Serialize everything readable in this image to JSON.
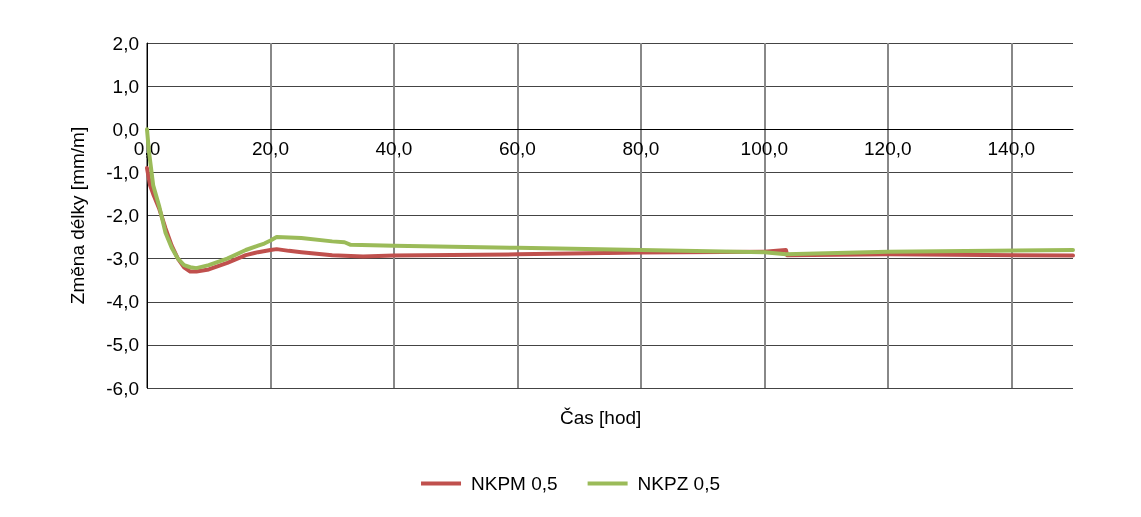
{
  "chart_data": {
    "type": "line",
    "xlabel": "Čas [hod]",
    "ylabel": "Změna délky [mm/m]",
    "xlim": [
      0,
      150
    ],
    "xticks": [
      {
        "value": 0,
        "label": "0,0"
      },
      {
        "value": 20,
        "label": "20,0"
      },
      {
        "value": 40,
        "label": "40,0"
      },
      {
        "value": 60,
        "label": "60,0"
      },
      {
        "value": 80,
        "label": "80,0"
      },
      {
        "value": 100,
        "label": "100,0"
      },
      {
        "value": 120,
        "label": "120,0"
      },
      {
        "value": 140,
        "label": "140,0"
      }
    ],
    "ylim": [
      -6,
      2
    ],
    "yticks": [
      {
        "value": -6,
        "label": "-6,0"
      },
      {
        "value": -5,
        "label": "-5,0"
      },
      {
        "value": -4,
        "label": "-4,0"
      },
      {
        "value": -3,
        "label": "-3,0"
      },
      {
        "value": -2,
        "label": "-2,0"
      },
      {
        "value": -1,
        "label": "-1,0"
      },
      {
        "value": 0,
        "label": "0,0"
      },
      {
        "value": 1,
        "label": "1,0"
      },
      {
        "value": 2,
        "label": "2,0"
      }
    ],
    "grid": true,
    "legend": "bottom",
    "marker": "none",
    "line_style": "solid",
    "series": [
      {
        "name": "NKPM 0,5",
        "color": "#c0504d",
        "x": [
          0,
          0.5,
          1,
          2,
          3,
          4,
          5,
          6,
          7,
          8,
          10,
          13,
          16,
          18,
          20,
          21,
          23,
          25,
          30,
          35,
          40,
          60,
          80,
          100,
          103.5,
          103.7,
          120,
          150
        ],
        "values": [
          -0.9,
          -1.3,
          -1.5,
          -1.85,
          -2.3,
          -2.7,
          -3.0,
          -3.2,
          -3.3,
          -3.3,
          -3.25,
          -3.1,
          -2.92,
          -2.85,
          -2.8,
          -2.78,
          -2.82,
          -2.85,
          -2.92,
          -2.95,
          -2.93,
          -2.9,
          -2.86,
          -2.84,
          -2.8,
          -2.92,
          -2.9,
          -2.93
        ]
      },
      {
        "name": "NKPZ 0,5",
        "color": "#9bbb59",
        "x": [
          0,
          0.3,
          1,
          2,
          3,
          4,
          5,
          6,
          7,
          8,
          10,
          13,
          16,
          18,
          19,
          20,
          21,
          25,
          30,
          32,
          33,
          40,
          60,
          80,
          100,
          103.5,
          120,
          150
        ],
        "values": [
          0,
          -0.5,
          -1.3,
          -1.8,
          -2.4,
          -2.75,
          -3.0,
          -3.15,
          -3.2,
          -3.22,
          -3.15,
          -3.0,
          -2.8,
          -2.7,
          -2.65,
          -2.58,
          -2.5,
          -2.52,
          -2.6,
          -2.62,
          -2.68,
          -2.7,
          -2.75,
          -2.8,
          -2.85,
          -2.9,
          -2.84,
          -2.8
        ]
      }
    ]
  }
}
